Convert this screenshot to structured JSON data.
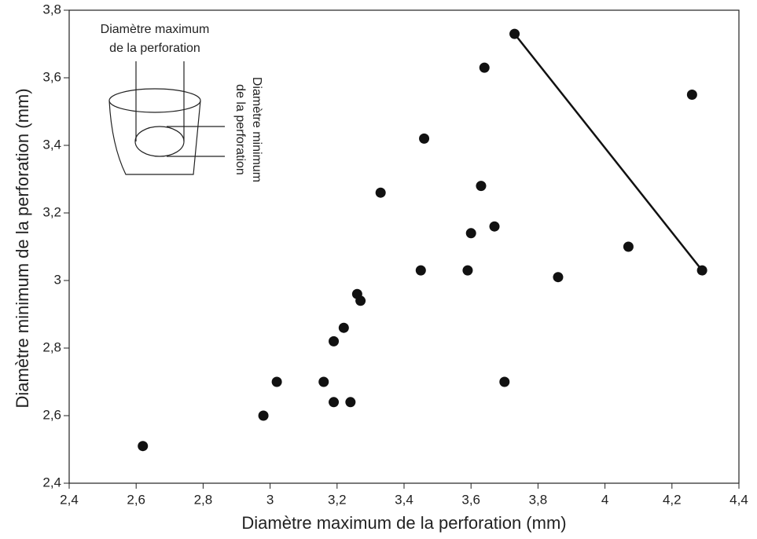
{
  "chart_data": {
    "type": "scatter",
    "x_label": "Diamètre maximum de la perforation (mm)",
    "y_label": "Diamètre minimum de la perforation (mm)",
    "inset_label_max": [
      "Diamètre maximum",
      "de la perforation"
    ],
    "inset_label_min": [
      "Diamètre minimum",
      "de la perforation"
    ],
    "x": [
      2.62,
      2.98,
      3.02,
      3.16,
      3.19,
      3.24,
      3.19,
      3.22,
      3.26,
      3.27,
      3.33,
      3.45,
      3.46,
      3.59,
      3.6,
      3.63,
      3.67,
      3.64,
      3.7,
      3.73,
      3.86,
      4.07,
      4.26,
      4.29
    ],
    "values": [
      2.51,
      2.6,
      2.7,
      2.7,
      2.64,
      2.64,
      2.82,
      2.86,
      2.96,
      2.94,
      3.26,
      3.03,
      3.42,
      3.03,
      3.14,
      3.28,
      3.16,
      3.63,
      2.7,
      3.73,
      3.01,
      3.1,
      3.55,
      3.03
    ],
    "color": "#111111",
    "segment": {
      "x": [
        3.73,
        4.29
      ],
      "y": [
        3.73,
        3.03
      ]
    },
    "xlim": [
      2.4,
      4.4
    ],
    "ylim": [
      2.4,
      3.8
    ],
    "xticks": [
      {
        "value": 2.4,
        "label": "2,4"
      },
      {
        "value": 2.6,
        "label": "2,6"
      },
      {
        "value": 2.8,
        "label": "2,8"
      },
      3,
      {
        "value": 3.2,
        "label": "3,2"
      },
      {
        "value": 3.4,
        "label": "3,4"
      },
      {
        "value": 3.6,
        "label": "3,6"
      },
      {
        "value": 3.8,
        "label": "3,8"
      },
      4,
      {
        "value": 4.2,
        "label": "4,2"
      },
      {
        "value": 4.4,
        "label": "4,4"
      }
    ],
    "yticks": [
      {
        "value": 2.4,
        "label": "2,4"
      },
      {
        "value": 2.6,
        "label": "2,6"
      },
      {
        "value": 2.8,
        "label": "2,8"
      },
      3,
      {
        "value": 3.2,
        "label": "3,2"
      },
      {
        "value": 3.4,
        "label": "3,4"
      },
      {
        "value": 3.6,
        "label": "3,6"
      },
      {
        "value": 3.8,
        "label": "3,8"
      }
    ],
    "grid": false
  }
}
